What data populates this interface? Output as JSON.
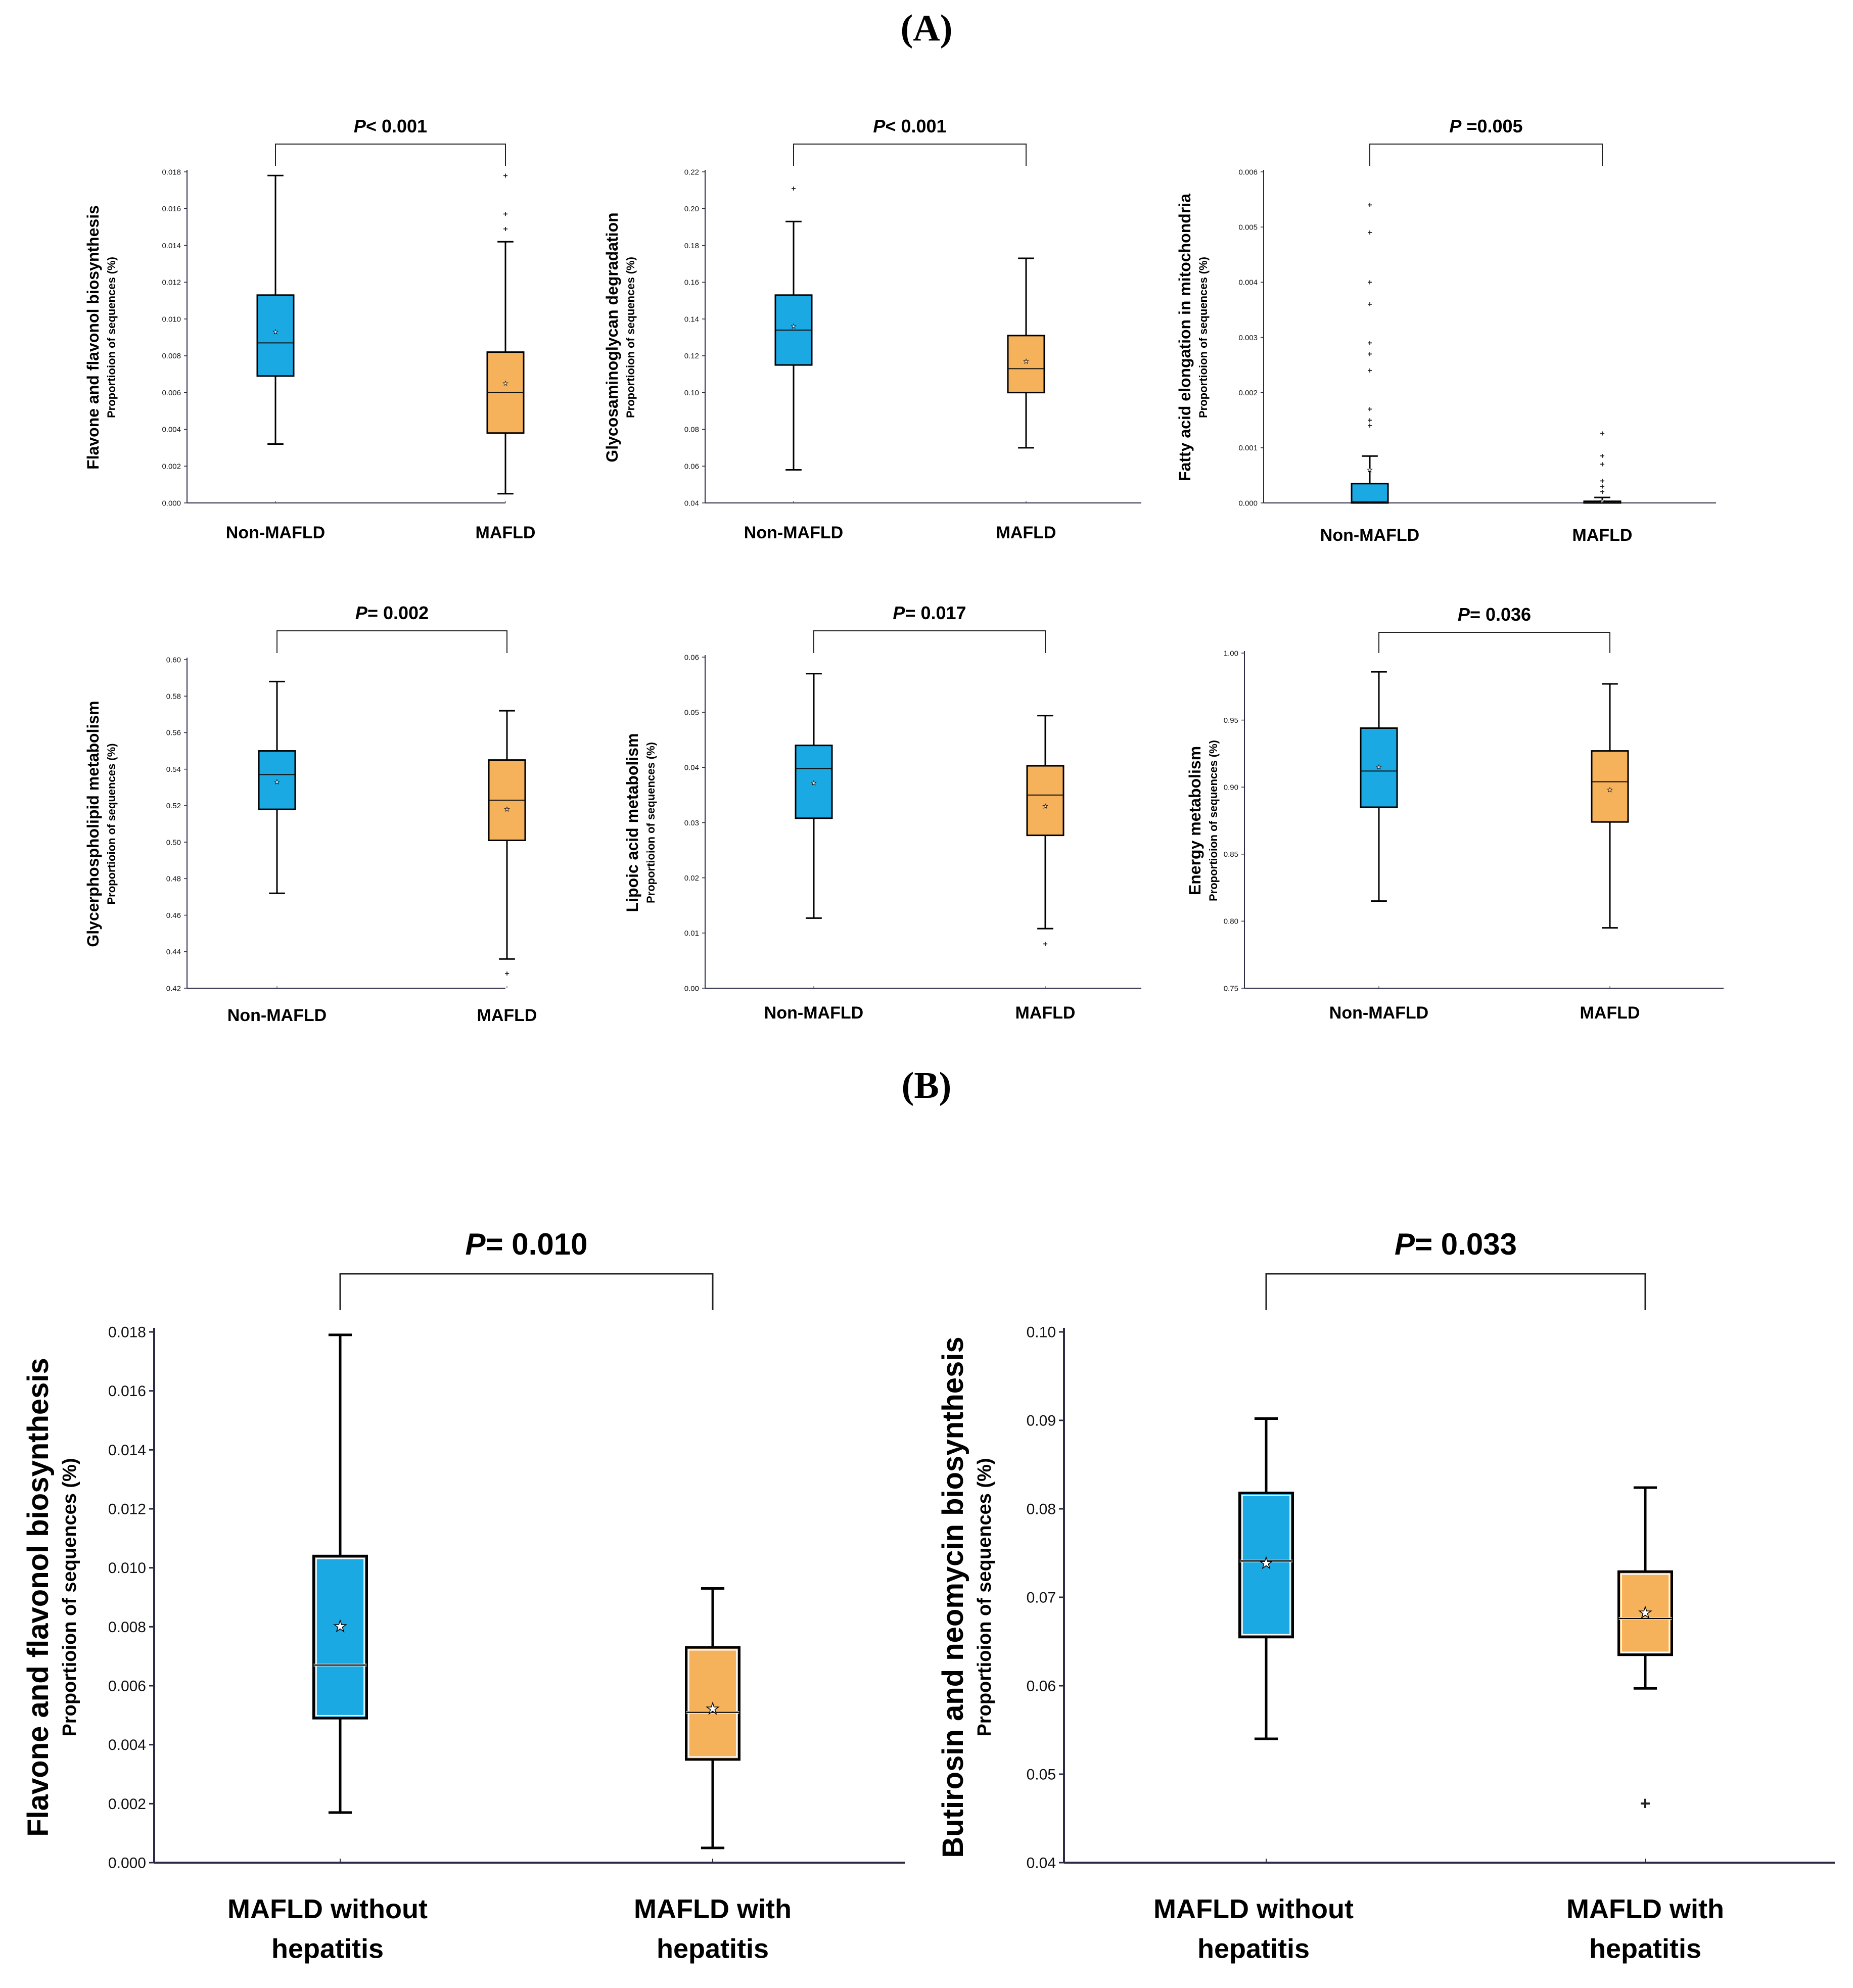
{
  "panels": {
    "A": "A",
    "B": "B"
  },
  "colors": {
    "non_mafld": "#1AA9E3",
    "mafld": "#F6B15B",
    "axis": "#2a2a45",
    "whisker": "#000000"
  },
  "chart_data": [
    {
      "type": "box",
      "panel": "A",
      "ylabel": "Flavone and flavonol biosynthesis",
      "ysublabel": "Proportioion of sequences (%)",
      "p_prefix": "P",
      "p_text": "< 0.001",
      "categories": [
        "Non-MAFLD",
        "MAFLD"
      ],
      "ylim": [
        0,
        0.018
      ],
      "ticks": [
        "0.000",
        "0.002",
        "0.004",
        "0.006",
        "0.008",
        "0.010",
        "0.012",
        "0.014",
        "0.016",
        "0.018"
      ],
      "boxes": [
        {
          "whislo": 0.0032,
          "q1": 0.0069,
          "med": 0.0087,
          "q3": 0.0113,
          "whishi": 0.0178,
          "mean": 0.0093,
          "fliers": []
        },
        {
          "whislo": 0.0005,
          "q1": 0.0038,
          "med": 0.006,
          "q3": 0.0082,
          "whishi": 0.0142,
          "mean": 0.0065,
          "fliers": [
            0.0149,
            0.0157,
            0.0178
          ]
        }
      ]
    },
    {
      "type": "box",
      "panel": "A",
      "ylabel": "Glycosaminoglycan degradation",
      "ysublabel": "Proportioion of sequences (%)",
      "p_prefix": "P",
      "p_text": "< 0.001",
      "categories": [
        "Non-MAFLD",
        "MAFLD"
      ],
      "ylim": [
        0.04,
        0.22
      ],
      "ticks": [
        "0.04",
        "0.06",
        "0.08",
        "0.10",
        "0.12",
        "0.14",
        "0.16",
        "0.18",
        "0.20",
        "0.22"
      ],
      "boxes": [
        {
          "whislo": 0.058,
          "q1": 0.115,
          "med": 0.134,
          "q3": 0.153,
          "whishi": 0.193,
          "mean": 0.136,
          "fliers": [
            0.211
          ]
        },
        {
          "whislo": 0.07,
          "q1": 0.1,
          "med": 0.113,
          "q3": 0.131,
          "whishi": 0.173,
          "mean": 0.117,
          "fliers": []
        }
      ]
    },
    {
      "type": "box",
      "panel": "A",
      "ylabel": "Fatty acid elongation in mitochondria",
      "ysublabel": "Proportioion of sequences (%)",
      "p_prefix": "P",
      "p_text": " =0.005",
      "categories": [
        "Non-MAFLD",
        "MAFLD"
      ],
      "ylim": [
        0,
        0.006
      ],
      "ticks": [
        "0.000",
        "0.001",
        "0.002",
        "0.003",
        "0.004",
        "0.005",
        "0.006"
      ],
      "boxes": [
        {
          "whislo": 0.0,
          "q1": 0.0,
          "med": 2e-05,
          "q3": 0.00035,
          "whishi": 0.00085,
          "mean": 0.0006,
          "fliers": [
            0.0014,
            0.0015,
            0.0017,
            0.0024,
            0.0027,
            0.0029,
            0.0036,
            0.004,
            0.0049,
            0.0054
          ]
        },
        {
          "whislo": 0.0,
          "q1": 0.0,
          "med": 1e-05,
          "q3": 3e-05,
          "whishi": 0.0001,
          "mean": 3e-05,
          "fliers": [
            0.0002,
            0.0003,
            0.0004,
            0.0007,
            0.00085,
            0.00126
          ]
        }
      ]
    },
    {
      "type": "box",
      "panel": "A",
      "ylabel": "Glycerphospholipid metabolism",
      "ysublabel": "Proportioion of sequences (%)",
      "p_prefix": "P",
      "p_text": "= 0.002",
      "categories": [
        "Non-MAFLD",
        "MAFLD"
      ],
      "ylim": [
        0.42,
        0.6
      ],
      "ticks": [
        "0.42",
        "0.44",
        "0.46",
        "0.48",
        "0.50",
        "0.52",
        "0.54",
        "0.56",
        "0.58",
        "0.60"
      ],
      "boxes": [
        {
          "whislo": 0.472,
          "q1": 0.518,
          "med": 0.537,
          "q3": 0.55,
          "whishi": 0.588,
          "mean": 0.533,
          "fliers": []
        },
        {
          "whislo": 0.436,
          "q1": 0.501,
          "med": 0.523,
          "q3": 0.545,
          "whishi": 0.572,
          "mean": 0.518,
          "fliers": [
            0.428
          ]
        }
      ]
    },
    {
      "type": "box",
      "panel": "A",
      "ylabel": "Lipoic acid metabolism",
      "ysublabel": "Proportioion of sequences (%)",
      "p_prefix": "P",
      "p_text": "= 0.017",
      "categories": [
        "Non-MAFLD",
        "MAFLD"
      ],
      "ylim": [
        0,
        0.06
      ],
      "ticks": [
        "0.00",
        "0.01",
        "0.02",
        "0.03",
        "0.04",
        "0.05",
        "0.06"
      ],
      "boxes": [
        {
          "whislo": 0.0127,
          "q1": 0.0308,
          "med": 0.0398,
          "q3": 0.044,
          "whishi": 0.057,
          "mean": 0.0372,
          "fliers": []
        },
        {
          "whislo": 0.0108,
          "q1": 0.0277,
          "med": 0.035,
          "q3": 0.0403,
          "whishi": 0.0494,
          "mean": 0.033,
          "fliers": [
            0.008
          ]
        }
      ]
    },
    {
      "type": "box",
      "panel": "A",
      "ylabel": "Energy metabolism",
      "ysublabel": "Proportioion of sequences (%)",
      "p_prefix": "P",
      "p_text": "= 0.036",
      "categories": [
        "Non-MAFLD",
        "MAFLD"
      ],
      "ylim": [
        0.75,
        1.0
      ],
      "ticks": [
        "0.75",
        "0.80",
        "0.85",
        "0.90",
        "0.95",
        "1.00"
      ],
      "boxes": [
        {
          "whislo": 0.815,
          "q1": 0.885,
          "med": 0.912,
          "q3": 0.944,
          "whishi": 0.986,
          "mean": 0.915,
          "fliers": []
        },
        {
          "whislo": 0.795,
          "q1": 0.874,
          "med": 0.904,
          "q3": 0.927,
          "whishi": 0.977,
          "mean": 0.898,
          "fliers": []
        }
      ]
    },
    {
      "type": "box",
      "panel": "B",
      "ylabel": "Flavone and flavonol biosynthesis",
      "ysublabel": "Proportioion of sequences (%)",
      "p_prefix": "P",
      "p_text": "= 0.010",
      "categories": [
        "MAFLD without hepatitis",
        "MAFLD with hepatitis"
      ],
      "category_lines": [
        [
          "MAFLD without",
          "hepatitis"
        ],
        [
          "MAFLD with",
          "hepatitis"
        ]
      ],
      "ylim": [
        0,
        0.018
      ],
      "ticks": [
        "0.000",
        "0.002",
        "0.004",
        "0.006",
        "0.008",
        "0.010",
        "0.012",
        "0.014",
        "0.016",
        "0.018"
      ],
      "boxes": [
        {
          "whislo": 0.0017,
          "q1": 0.0049,
          "med": 0.0067,
          "q3": 0.0104,
          "whishi": 0.0179,
          "mean": 0.008,
          "fliers": []
        },
        {
          "whislo": 0.0005,
          "q1": 0.0035,
          "med": 0.0051,
          "q3": 0.0073,
          "whishi": 0.0093,
          "mean": 0.0052,
          "fliers": []
        }
      ]
    },
    {
      "type": "box",
      "panel": "B",
      "ylabel": "Butirosin and neomycin biosynthesis",
      "ysublabel": "Proportioion of sequences (%)",
      "p_prefix": "P",
      "p_text": "= 0.033",
      "categories": [
        "MAFLD without hepatitis",
        "MAFLD with hepatitis"
      ],
      "category_lines": [
        [
          "MAFLD without",
          "hepatitis"
        ],
        [
          "MAFLD with",
          "hepatitis"
        ]
      ],
      "ylim": [
        0.04,
        0.1
      ],
      "ticks": [
        "0.04",
        "0.05",
        "0.06",
        "0.07",
        "0.08",
        "0.09",
        "0.10"
      ],
      "boxes": [
        {
          "whislo": 0.054,
          "q1": 0.0655,
          "med": 0.0741,
          "q3": 0.0818,
          "whishi": 0.0902,
          "mean": 0.0738,
          "fliers": []
        },
        {
          "whislo": 0.0597,
          "q1": 0.0635,
          "med": 0.0676,
          "q3": 0.0729,
          "whishi": 0.0824,
          "mean": 0.0682,
          "fliers": [
            0.0467
          ]
        }
      ]
    }
  ]
}
